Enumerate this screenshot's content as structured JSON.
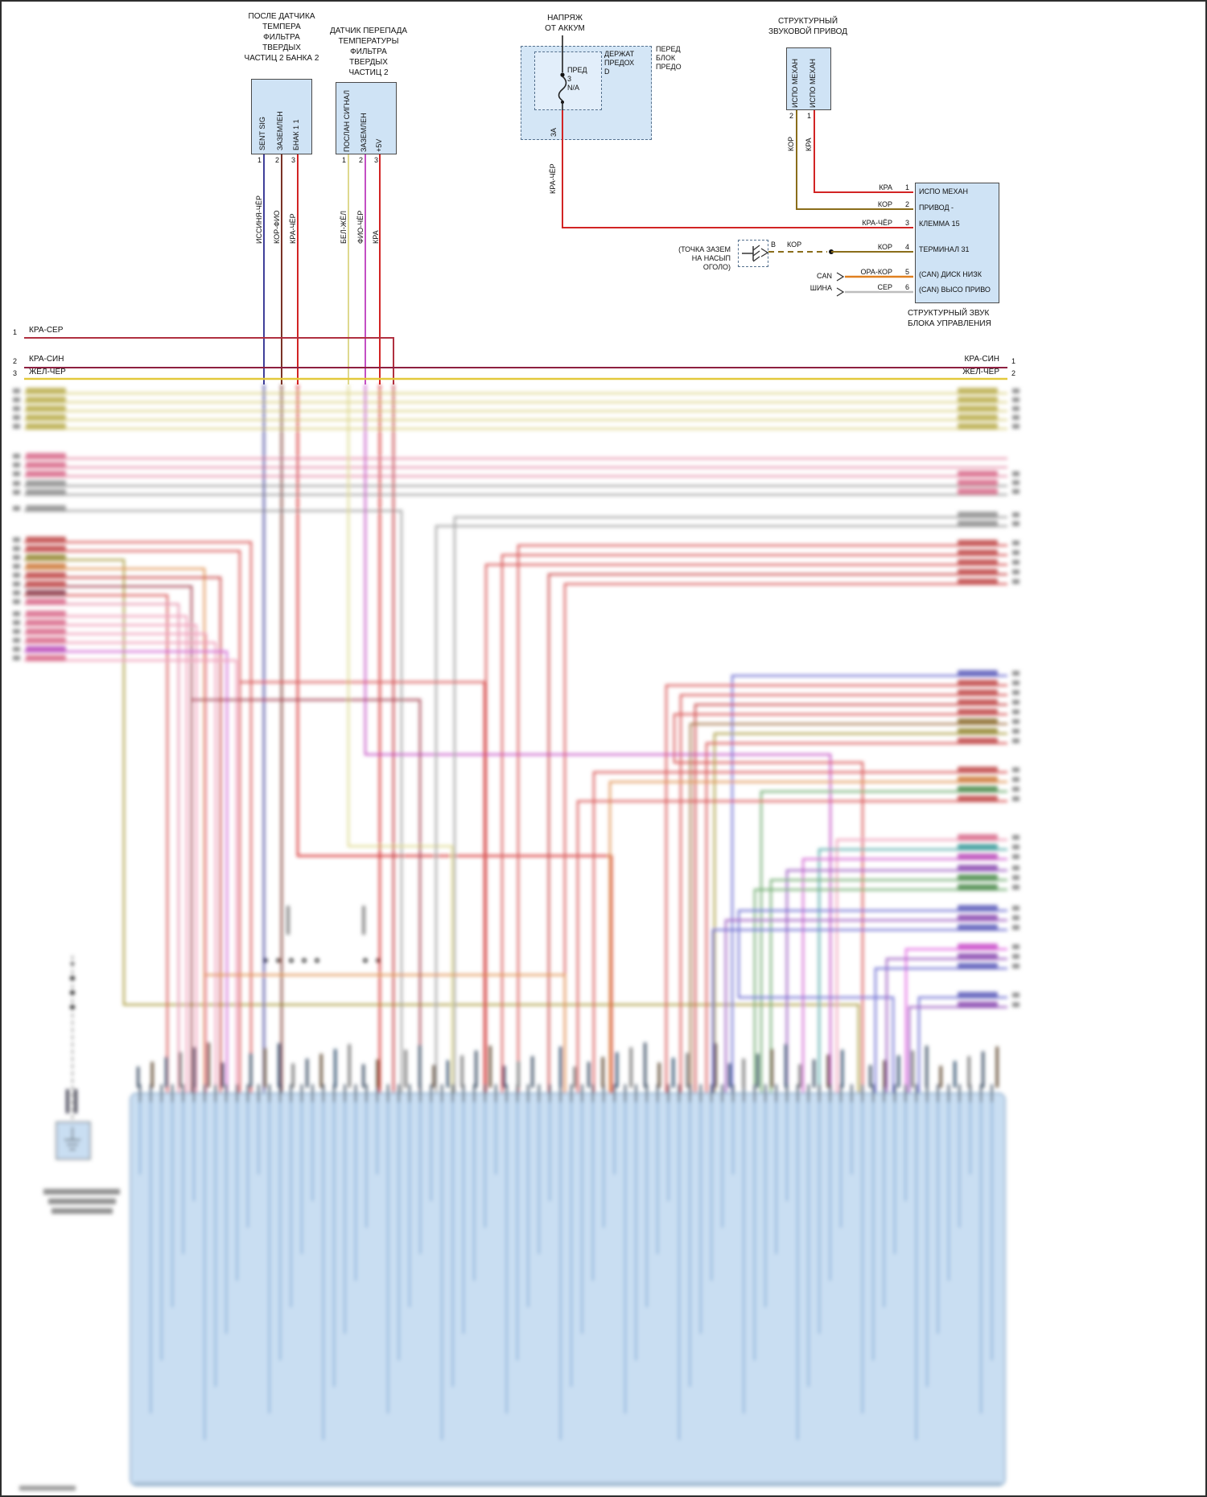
{
  "sensor_dpf_temp": {
    "title_lines": [
      "ПОСЛЕ ДАТЧИКА",
      "ТЕМПЕРА",
      "ФИЛЬТРА",
      "ТВЕРДЫХ",
      "ЧАСТИЦ 2 БАНКА 2"
    ],
    "pin_labels": [
      "SENT SIG",
      "ЗАЗЕМЛЕН",
      "БНАК 1 1"
    ],
    "pin_numbers": [
      "1",
      "2",
      "3"
    ],
    "wire_names": [
      "ИССИНЯ-ЧЁР",
      "КОР-ФИО",
      "КРА-ЧЁР"
    ]
  },
  "sensor_dpf_diff": {
    "title_lines": [
      "ДАТЧИК ПЕРЕПАДА",
      "ТЕМПЕРАТУРЫ",
      "ФИЛЬТРА",
      "ТВЕРДЫХ",
      "ЧАСТИЦ 2"
    ],
    "pin_labels": [
      "ПОСЛАН СИГНАЛ",
      "ЗАЗЕМЛЕН",
      "+5V"
    ],
    "pin_numbers": [
      "1",
      "2",
      "3"
    ],
    "wire_names": [
      "БЕЛ-ЖЁЛ",
      "ФИО-ЧЁР",
      "КРА"
    ]
  },
  "fuse_block": {
    "title_lines": [
      "НАПРЯЖ",
      "ОТ АККУМ"
    ],
    "fuse_lines": [
      "ПРЕД",
      "3",
      "N/A"
    ],
    "holder_lines": [
      "ДЕРЖАТ",
      "ПРЕДОХ",
      "D"
    ],
    "panel_lines": [
      "ПЕРЕД",
      "БЛОК",
      "ПРЕДО"
    ],
    "rating": "3А",
    "wire_name": "КРА-ЧЁР"
  },
  "actuator": {
    "title_lines": [
      "СТРУКТУРНЫЙ",
      "ЗВУКОВОЙ ПРИВОД"
    ],
    "pin_labels": [
      "ИСПО МЕХАН",
      "ИСПО МЕХАН"
    ],
    "pin_numbers": [
      "2",
      "1"
    ],
    "wire_names": [
      "КОР",
      "КРА"
    ]
  },
  "ecu": {
    "pin_rows": [
      {
        "wire": "КРА",
        "num": "1"
      },
      {
        "wire": "КОР",
        "num": "2"
      },
      {
        "wire": "КРА-ЧЁР",
        "num": "3"
      },
      {
        "wire": "КОР",
        "num": "4"
      },
      {
        "wire": "ОРА-КОР",
        "num": "5"
      },
      {
        "wire": "СЕР",
        "num": "6"
      }
    ],
    "inner_lines": [
      "ИСПО МЕХАН",
      "ПРИВОД -",
      "КЛЕММА 15",
      "ТЕРМИНАЛ 31",
      "(CAN) ДИСК НИЗК",
      "(CAN) ВЫСО ПРИВО"
    ],
    "caption_lines": [
      "СТРУКТУРНЫЙ ЗВУК",
      "БЛОКА УПРАВЛЕНИЯ"
    ]
  },
  "ground": {
    "label_lines": [
      "(ТОЧКА ЗАЗЕМ",
      "НА НАСЫП",
      "ОГОЛО)"
    ],
    "connector_label": "В",
    "wire_name": "КОР"
  },
  "can_bus": {
    "label_lines": [
      "CAN",
      "ШИНА"
    ]
  },
  "bus_rows_left": [
    {
      "num": "1",
      "name": "КРА-СЕР"
    },
    {
      "num": "2",
      "name": "КРА-СИН"
    },
    {
      "num": "3",
      "name": "ЖЁЛ-ЧЁР"
    }
  ],
  "bus_rows_right": [
    {
      "num": "1",
      "name": "КРА-СИН"
    },
    {
      "num": "2",
      "name": "ЖЁЛ-ЧЁР"
    }
  ],
  "wire_colors": {
    "kra": "#d22424",
    "kra_cher": "#d22424",
    "kor": "#8a6d1a",
    "kor_fio": "#7a3226",
    "issinya_cher": "#3f3f9a",
    "bel_zhel": "#ded98e",
    "fio_cher": "#c44fc4",
    "ora_kor": "#e08020",
    "ser": "#bdbdbd",
    "kra_ser": "#b03040",
    "kra_sin": "#8e2040",
    "zhel_cher": "#e3c93c"
  }
}
